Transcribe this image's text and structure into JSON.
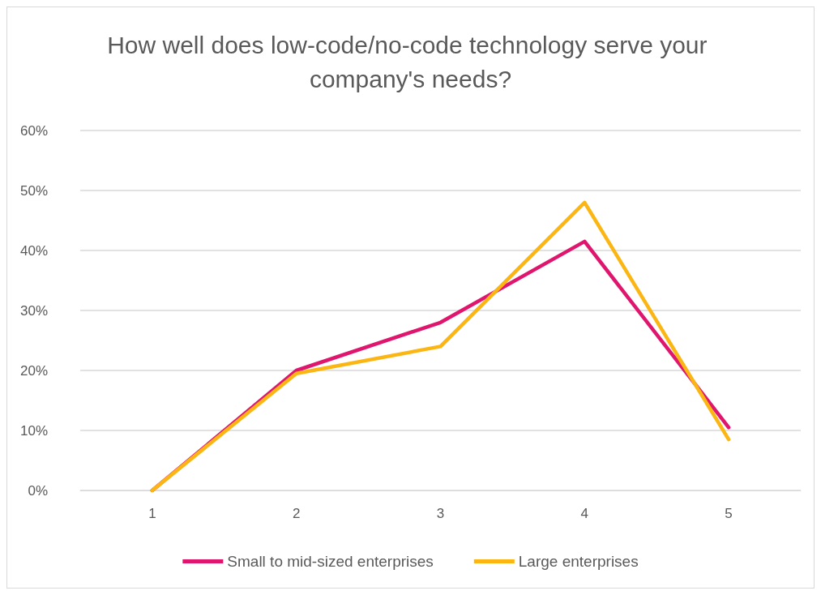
{
  "chart_data": {
    "type": "line",
    "title": "How well does low-code/no-code technology serve your company's needs?",
    "categories": [
      "1",
      "2",
      "3",
      "4",
      "5"
    ],
    "series": [
      {
        "name": "Small to mid-sized enterprises",
        "color": "#e0166e",
        "values": [
          0,
          20,
          28,
          41.5,
          10.5
        ]
      },
      {
        "name": "Large enterprises",
        "color": "#fcb614",
        "values": [
          0,
          19.5,
          24,
          48,
          8.5
        ]
      }
    ],
    "ylim": [
      0,
      60
    ],
    "yticks": [
      {
        "value": 0,
        "label": "0%"
      },
      {
        "value": 10,
        "label": "10%"
      },
      {
        "value": 20,
        "label": "20%"
      },
      {
        "value": 30,
        "label": "30%"
      },
      {
        "value": 40,
        "label": "40%"
      },
      {
        "value": 50,
        "label": "50%"
      },
      {
        "value": 60,
        "label": "60%"
      }
    ],
    "grid": "y",
    "legend": "bottom",
    "marker": "none",
    "line_style": "solid"
  }
}
